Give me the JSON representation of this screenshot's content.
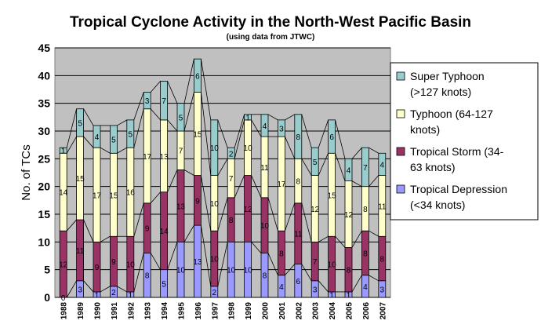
{
  "chart_data": {
    "type": "bar",
    "stacked": true,
    "title": "Tropical Cyclone Activity in the North-West Pacific Basin",
    "subtitle": "(using data from JTWC)",
    "xlabel": "",
    "ylabel": "No. of TCs",
    "ylim": [
      0,
      45
    ],
    "yticks": [
      0,
      5,
      10,
      15,
      20,
      25,
      30,
      35,
      40,
      45
    ],
    "grid": true,
    "legend_position": "right",
    "categories": [
      "1988",
      "1989",
      "1990",
      "1991",
      "1992",
      "1993",
      "1994",
      "1995",
      "1996",
      "1997",
      "1998",
      "1999",
      "2000",
      "2001",
      "2002",
      "2003",
      "2004",
      "2005",
      "2006",
      "2007"
    ],
    "series": [
      {
        "name": "Tropical Depression (<34 knots)",
        "color": "#9999ff",
        "values": [
          0,
          3,
          1,
          2,
          1,
          8,
          5,
          10,
          13,
          2,
          10,
          10,
          8,
          4,
          6,
          3,
          1,
          1,
          4,
          3
        ]
      },
      {
        "name": "Tropical Storm (34-63 knots)",
        "color": "#993366",
        "values": [
          12,
          11,
          9,
          9,
          10,
          9,
          14,
          13,
          9,
          10,
          8,
          12,
          10,
          8,
          11,
          7,
          10,
          8,
          8,
          8
        ]
      },
      {
        "name": "Typhoon (64-127 knots)",
        "color": "#ffffcc",
        "values": [
          14,
          15,
          17,
          15,
          16,
          17,
          13,
          7,
          15,
          10,
          7,
          10,
          11,
          17,
          8,
          12,
          15,
          12,
          8,
          11
        ]
      },
      {
        "name": "Super Typhoon (>127 knots)",
        "color": "#99cccc",
        "values": [
          1,
          5,
          4,
          5,
          5,
          3,
          7,
          5,
          6,
          10,
          2,
          1,
          4,
          3,
          8,
          5,
          6,
          4,
          7,
          4
        ]
      }
    ],
    "legend_lines": [
      [
        "Super Typhoon",
        "(>127 knots)"
      ],
      [
        "Typhoon (64-127",
        "knots)"
      ],
      [
        "Tropical Storm (34-",
        "63 knots)"
      ],
      [
        "Tropical Depression",
        "(<34 knots)"
      ]
    ],
    "plot_background": "#c0c0c0"
  }
}
